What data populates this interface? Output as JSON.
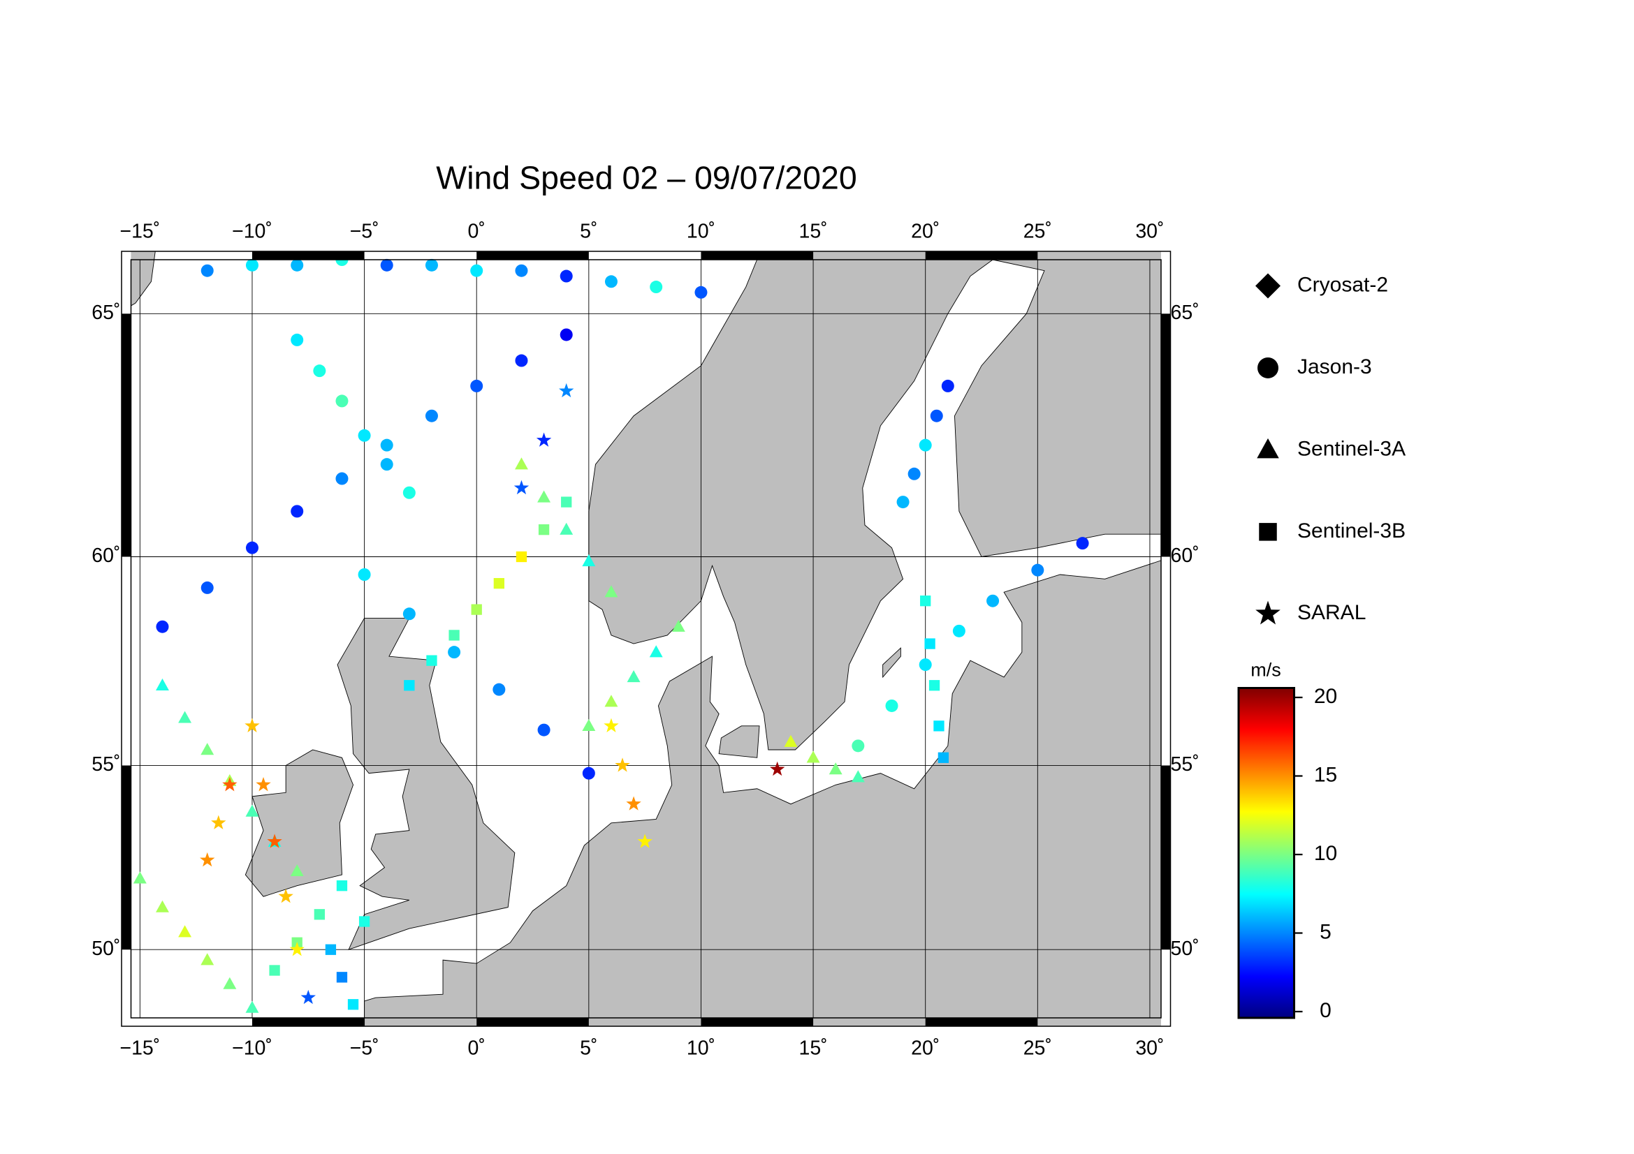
{
  "chart_data": {
    "type": "map",
    "title": "Wind Speed 02 – 09/07/2020",
    "xlim": [
      -15.4,
      30.5
    ],
    "ylim": [
      48,
      66
    ],
    "projection": "mercator",
    "grid": true,
    "xticks": [
      {
        "value": -15,
        "label": "−15˚"
      },
      {
        "value": -10,
        "label": "−10˚"
      },
      {
        "value": -5,
        "label": "−5˚"
      },
      {
        "value": 0,
        "label": "0˚"
      },
      {
        "value": 5,
        "label": "5˚"
      },
      {
        "value": 10,
        "label": "10˚"
      },
      {
        "value": 15,
        "label": "15˚"
      },
      {
        "value": 20,
        "label": "20˚"
      },
      {
        "value": 25,
        "label": "25˚"
      },
      {
        "value": 30,
        "label": "30˚"
      }
    ],
    "yticks": [
      {
        "value": 50,
        "label": "50˚"
      },
      {
        "value": 55,
        "label": "55˚"
      },
      {
        "value": 60,
        "label": "60˚"
      },
      {
        "value": 65,
        "label": "65˚"
      }
    ],
    "colorbar": {
      "label": "m/s",
      "lim": [
        -0.4,
        20.6
      ],
      "ticks": [
        0,
        5,
        10,
        15,
        20
      ],
      "colormap": "jet"
    },
    "land_color": "#bebebe",
    "series": [
      {
        "name": "Cryosat-2",
        "marker": "diamond",
        "lon": [],
        "lat": [],
        "values": []
      },
      {
        "name": "Jason-3",
        "marker": "circle",
        "lon": [
          -14,
          -12,
          -10,
          -8,
          -6,
          -4,
          -2,
          0,
          2,
          4,
          5,
          3,
          1,
          -1,
          -3,
          -5,
          17,
          18.5,
          20,
          21.5,
          23,
          25,
          27,
          -12,
          -10,
          -8,
          -6,
          -4,
          -2,
          0,
          2,
          4,
          6,
          8,
          10,
          19,
          19.5,
          20,
          20.5,
          21,
          -8,
          -7,
          -6,
          -5,
          -4,
          -3
        ],
        "lat": [
          58.4,
          59.3,
          60.2,
          61.0,
          61.7,
          62.4,
          63.0,
          63.6,
          64.1,
          64.6,
          54.8,
          55.9,
          56.9,
          57.8,
          58.7,
          59.6,
          55.5,
          56.5,
          57.5,
          58.3,
          59.0,
          59.7,
          60.3,
          65.8,
          65.9,
          65.9,
          66.0,
          65.9,
          65.9,
          65.8,
          65.8,
          65.7,
          65.6,
          65.5,
          65.4,
          61.2,
          61.8,
          62.4,
          63.0,
          63.6,
          64.5,
          63.9,
          63.3,
          62.6,
          62.0,
          61.4
        ],
        "values": [
          3,
          4,
          3,
          3,
          5,
          6,
          5,
          4,
          3,
          2,
          3,
          4,
          5,
          6,
          6,
          7,
          9,
          8,
          7,
          7,
          6,
          5,
          3,
          5,
          7,
          6,
          8,
          4,
          6,
          7,
          5,
          3,
          6,
          8,
          4,
          6,
          5,
          7,
          4,
          3,
          7,
          8,
          9,
          7,
          6,
          8
        ]
      },
      {
        "name": "Sentinel-3A",
        "marker": "triangle",
        "lon": [
          -15,
          -14,
          -13,
          -12,
          -11,
          -10,
          5,
          6,
          7,
          8,
          9,
          -14,
          -13,
          -12,
          -11,
          -10,
          -9,
          -8,
          2,
          3,
          4,
          5,
          6,
          14,
          15,
          16,
          17
        ],
        "lat": [
          52.0,
          51.2,
          50.5,
          49.7,
          49.0,
          48.3,
          56.0,
          56.6,
          57.2,
          57.8,
          58.4,
          57.0,
          56.2,
          55.4,
          54.6,
          53.8,
          53.0,
          52.2,
          62.0,
          61.3,
          60.6,
          59.9,
          59.2,
          55.6,
          55.2,
          54.9,
          54.7
        ],
        "values": [
          10,
          11,
          12,
          11,
          10,
          9,
          10,
          11,
          9,
          8,
          10,
          8,
          9,
          10,
          11,
          9,
          8,
          10,
          11,
          10,
          9,
          8,
          10,
          12,
          11,
          10,
          9
        ]
      },
      {
        "name": "Sentinel-3B",
        "marker": "square",
        "lon": [
          -6.5,
          -6,
          -5.5,
          -5,
          -3,
          -2,
          -1,
          0,
          1,
          2,
          3,
          4,
          20,
          20.2,
          20.4,
          20.6,
          20.8,
          -9,
          -8,
          -7,
          -6
        ],
        "lat": [
          50.0,
          49.2,
          48.4,
          50.8,
          57.0,
          57.6,
          58.2,
          58.8,
          59.4,
          60.0,
          60.6,
          61.2,
          59.0,
          58.0,
          57.0,
          56.0,
          55.2,
          49.4,
          50.2,
          51.0,
          51.8
        ],
        "values": [
          6,
          5,
          7,
          8,
          7,
          8,
          9,
          11,
          12,
          13,
          10,
          9,
          8,
          7,
          8,
          7,
          6,
          9,
          10,
          9,
          8
        ]
      },
      {
        "name": "SARAL",
        "marker": "star",
        "lon": [
          -10,
          -9.5,
          -9,
          -8.5,
          -8,
          -7.5,
          13.4,
          -12,
          -11.5,
          -11,
          6,
          6.5,
          7,
          7.5,
          2,
          3,
          4
        ],
        "lat": [
          56.0,
          54.5,
          53.0,
          51.5,
          50.0,
          48.6,
          54.9,
          52.5,
          53.5,
          54.5,
          56.0,
          55.0,
          54.0,
          53.0,
          61.5,
          62.5,
          63.5
        ],
        "values": [
          14,
          15,
          16,
          14,
          13,
          4,
          20,
          15,
          14,
          16,
          13,
          14,
          15,
          13,
          4,
          3,
          5
        ]
      }
    ]
  }
}
